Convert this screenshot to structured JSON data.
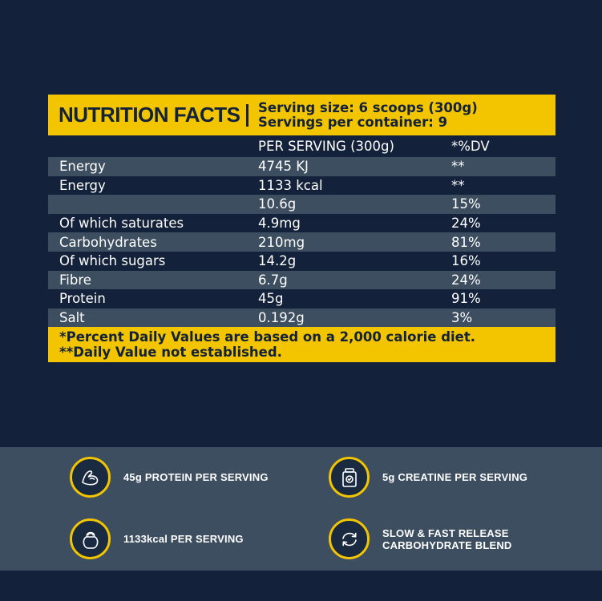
{
  "facts": {
    "title": "NUTRITION FACTS",
    "serving_size": "Serving size: 6 scoops (300g)",
    "servings_per_container": "Servings per container: 9",
    "header_per_serving": "PER SERVING (300g)",
    "header_dv": "*%DV",
    "rows": [
      {
        "name": "Energy",
        "value": "4745 KJ",
        "dv": "**"
      },
      {
        "name": "Energy",
        "value": "1133 kcal",
        "dv": "**"
      },
      {
        "name": "",
        "value": "10.6g",
        "dv": "15%"
      },
      {
        "name": "Of which saturates",
        "value": "4.9mg",
        "dv": "24%"
      },
      {
        "name": "Carbohydrates",
        "value": "210mg",
        "dv": "81%"
      },
      {
        "name": "Of which sugars",
        "value": "14.2g",
        "dv": "16%"
      },
      {
        "name": "Fibre",
        "value": "6.7g",
        "dv": "24%"
      },
      {
        "name": "Protein",
        "value": "45g",
        "dv": "91%"
      },
      {
        "name": "Salt",
        "value": "0.192g",
        "dv": "3%"
      }
    ],
    "footnote_1": "*Percent Daily Values are based on a 2,000 calorie diet.",
    "footnote_2": "**Daily Value not established."
  },
  "features": {
    "protein": {
      "label": "45g PROTEIN PER SERVING",
      "icon": "bicep-icon"
    },
    "creatine": {
      "label": "5g CREATINE PER SERVING",
      "icon": "supplement-jar-icon"
    },
    "kcal": {
      "label": "1133kcal PER SERVING",
      "icon": "kettlebell-icon"
    },
    "carbs": {
      "line1": "SLOW & FAST RELEASE",
      "line2": "CARBOHYDRATE BLEND",
      "icon": "cycle-arrows-icon"
    }
  },
  "colors": {
    "background": "#13213a",
    "accent": "#f2c500",
    "stripe": "#3d4e61"
  }
}
